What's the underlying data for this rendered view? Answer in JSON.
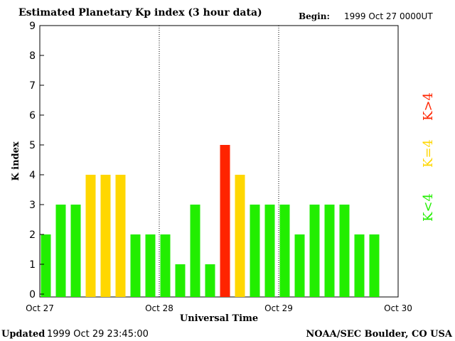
{
  "header": {
    "title": "Estimated Planetary Kp index (3 hour data)",
    "begin_label": "Begin:",
    "begin_value": "1999 Oct 27 0000UT"
  },
  "footer": {
    "updated_label": "Updated",
    "updated_value": "1999 Oct 29 23:45:00",
    "source": "NOAA/SEC Boulder, CO USA"
  },
  "legend": {
    "high": {
      "label": "K>4",
      "color": "#ff2400"
    },
    "equal": {
      "label": "K=4",
      "color": "#ffd700"
    },
    "low": {
      "label": "K<4",
      "color": "#22ee00"
    }
  },
  "chart_data": {
    "type": "bar",
    "title": "Estimated Planetary Kp index (3 hour data)",
    "xlabel": "Universal Time",
    "ylabel": "K index",
    "ylim": [
      0,
      9
    ],
    "yticks": [
      "0",
      "1",
      "2",
      "3",
      "4",
      "5",
      "6",
      "7",
      "8",
      "9"
    ],
    "xticks": [
      "Oct 27",
      "Oct 28",
      "Oct 29",
      "Oct 30"
    ],
    "interval_hours": 3,
    "values": [
      2,
      3,
      3,
      4,
      4,
      4,
      2,
      2,
      2,
      1,
      3,
      1,
      5,
      4,
      3,
      3,
      3,
      2,
      3,
      3,
      3,
      2,
      2
    ],
    "grid": "vertical dotted lines at day boundaries",
    "legend_position": "right"
  }
}
